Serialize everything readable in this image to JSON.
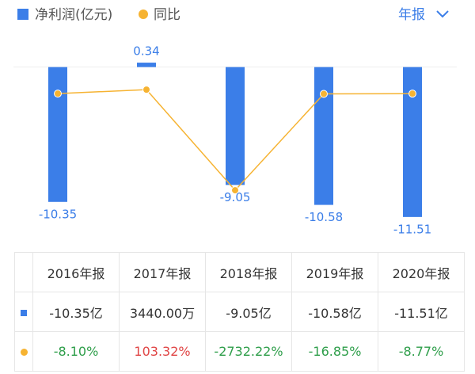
{
  "chart_data": {
    "type": "bar-line",
    "categories": [
      "2016",
      "2017",
      "2018",
      "2019",
      "2020"
    ],
    "series": [
      {
        "name": "净利润(亿元)",
        "color": "#3b7ee8",
        "values": [
          -10.35,
          0.34,
          -9.05,
          -10.58,
          -11.51
        ]
      },
      {
        "name": "同比",
        "color": "#f6b332",
        "axis": "y2",
        "values": [
          -8.1,
          103.32,
          -2732.22,
          -16.85,
          -8.77
        ]
      }
    ],
    "ylim": [
      -13.1,
      1.5
    ],
    "y2lim": [
      -4070,
      1290
    ],
    "period": "年报"
  },
  "table": {
    "header": [
      "2016年报",
      "2017年报",
      "2018年报",
      "2019年报",
      "2020年报"
    ],
    "rows": [
      {
        "cells": [
          "-10.35亿",
          "3440.00万",
          "-9.05亿",
          "-10.58亿",
          "-11.51亿"
        ],
        "colors": [
          "#333333",
          "#333333",
          "#333333",
          "#333333",
          "#333333"
        ]
      },
      {
        "cells": [
          "-8.10%",
          "103.32%",
          "-2732.22%",
          "-16.85%",
          "-8.77%"
        ],
        "colors": [
          "#2e9e4a",
          "#e04545",
          "#2e9e4a",
          "#2e9e4a",
          "#2e9e4a"
        ]
      }
    ]
  }
}
